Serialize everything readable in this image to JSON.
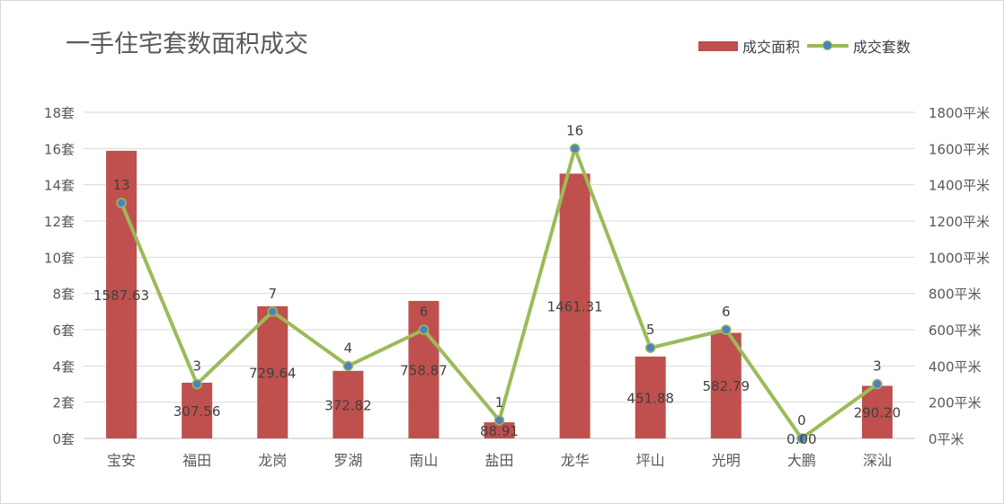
{
  "chart_data": {
    "type": "bar+line",
    "title": "一手住宅套数面积成交",
    "categories": [
      "宝安",
      "福田",
      "龙岗",
      "罗湖",
      "南山",
      "盐田",
      "龙华",
      "坪山",
      "光明",
      "大鹏",
      "深汕"
    ],
    "series": [
      {
        "name": "成交面积",
        "type": "bar",
        "axis": "right",
        "values": [
          1587.63,
          307.56,
          729.64,
          372.82,
          758.87,
          88.91,
          1461.31,
          451.88,
          582.79,
          0.0,
          290.2
        ],
        "labels": [
          "1587.63",
          "307.56",
          "729.64",
          "372.82",
          "758.87",
          "88.91",
          "1461.31",
          "451.88",
          "582.79",
          "0.00",
          "290.20"
        ],
        "color": "#c0504d"
      },
      {
        "name": "成交套数",
        "type": "line",
        "axis": "left",
        "values": [
          13,
          3,
          7,
          4,
          6,
          1,
          16,
          5,
          6,
          0,
          3
        ],
        "labels": [
          "13",
          "3",
          "7",
          "4",
          "6",
          "1",
          "16",
          "5",
          "6",
          "0",
          "3"
        ],
        "color": "#9bbb59",
        "marker_color": "#4f81bd"
      }
    ],
    "y_left": {
      "ylim": [
        0,
        18
      ],
      "ticks": [
        0,
        2,
        4,
        6,
        8,
        10,
        12,
        14,
        16,
        18
      ],
      "tick_labels": [
        "0套",
        "2套",
        "4套",
        "6套",
        "8套",
        "10套",
        "12套",
        "14套",
        "16套",
        "18套"
      ]
    },
    "y_right": {
      "ylim": [
        0,
        1800
      ],
      "ticks": [
        0,
        200,
        400,
        600,
        800,
        1000,
        1200,
        1400,
        1600,
        1800
      ],
      "tick_labels": [
        "0平米",
        "200平米",
        "400平米",
        "600平米",
        "800平米",
        "1000平米",
        "1200平米",
        "1400平米",
        "1600平米",
        "1800平米"
      ]
    },
    "grid": true,
    "legend_position": "top-right"
  }
}
